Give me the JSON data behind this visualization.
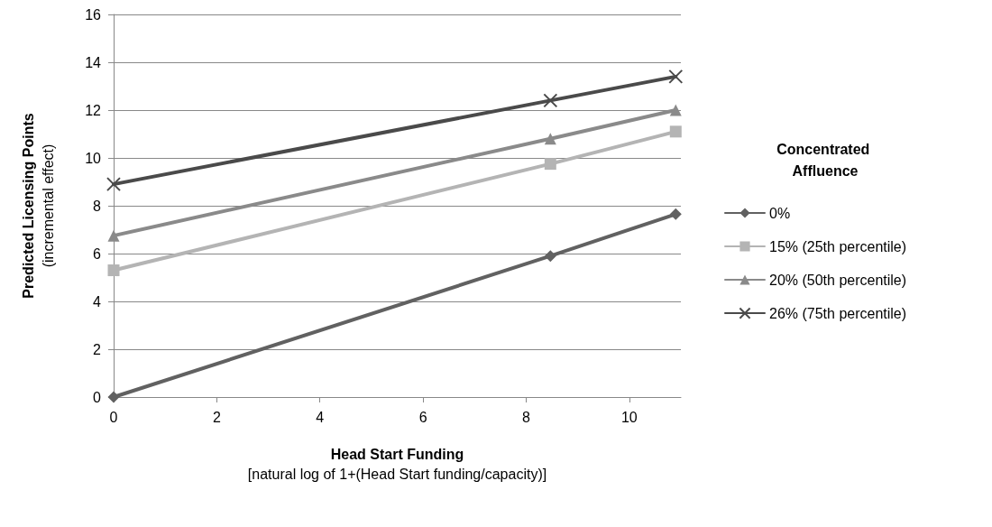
{
  "chart_data": {
    "type": "line",
    "xlabel": "Head Start Funding\n[natural log of 1+(Head Start funding/capacity)]",
    "ylabel": "Predicted Licensing Points\n(incremental effect)",
    "legend_title": "Concentrated Affluence",
    "legend": "right",
    "grid": "y",
    "line_style": "solid",
    "xlim": [
      0,
      11
    ],
    "xticks": [
      0,
      2,
      4,
      6,
      8,
      10
    ],
    "ylim": [
      0,
      16
    ],
    "yticks": [
      0,
      2,
      4,
      6,
      8,
      10,
      12,
      14,
      16
    ],
    "series": [
      {
        "name": "0%",
        "color": "#616161",
        "marker": "diamond",
        "x": [
          0,
          8.47,
          10.9
        ],
        "values": [
          0,
          5.9,
          7.65
        ]
      },
      {
        "name": "15% (25th percentile)",
        "color": "#b4b4b4",
        "marker": "square",
        "x": [
          0,
          8.47,
          10.9
        ],
        "values": [
          5.3,
          9.75,
          11.1
        ]
      },
      {
        "name": "20% (50th percentile)",
        "color": "#8a8a8a",
        "marker": "triangle",
        "x": [
          0,
          8.47,
          10.9
        ],
        "values": [
          6.75,
          10.8,
          12.0
        ]
      },
      {
        "name": "26% (75th percentile)",
        "color": "#4a4a4a",
        "marker": "cross",
        "x": [
          0,
          8.47,
          10.9
        ],
        "values": [
          8.9,
          12.4,
          13.4
        ]
      }
    ]
  }
}
